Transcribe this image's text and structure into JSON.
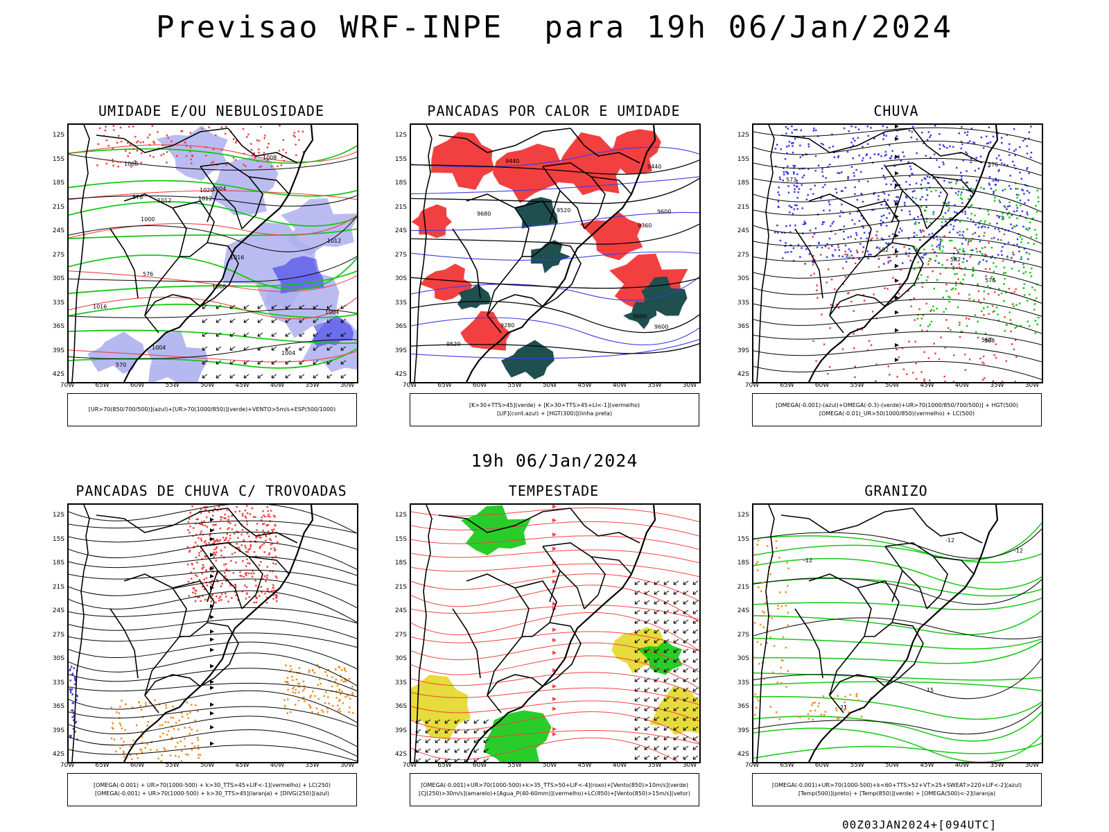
{
  "header": {
    "title": "Previsao WRF-INPE  para 19h 06/Jan/2024",
    "subtitle": "19h 06/Jan/2024",
    "footer": "00Z03JAN2024+[094UTC]"
  },
  "axes": {
    "lat_labels": [
      "12S",
      "15S",
      "18S",
      "21S",
      "24S",
      "27S",
      "30S",
      "33S",
      "36S",
      "39S",
      "42S"
    ],
    "lon_labels": [
      "70W",
      "65W",
      "60W",
      "55W",
      "50W",
      "45W",
      "40W",
      "35W",
      "30W"
    ]
  },
  "panels": [
    {
      "title": "UMIDADE E/OU NEBULOSIDADE",
      "legend": [
        "[UR>70(850/700/500)](azul)+[UR>70(1000/850)](verde)+VENTO>5m/s+ESP(500/1000)"
      ],
      "contour_labels": [
        "1004",
        "1008",
        "1004",
        "1012",
        "1004",
        "1008",
        "1012",
        "1016",
        "1012",
        "1016",
        "1020",
        "1008",
        "1004",
        "1000",
        "576",
        "570",
        "576"
      ]
    },
    {
      "title": "PANCADAS POR CALOR E UMIDADE",
      "legend": [
        "[K>30+TTS>45](verde) + [K>30+TTS>45+LI<-1](vermelho)",
        "[LIF](cont.azul) + [HGT(300)](linha preta)"
      ],
      "contour_labels": [
        "9600",
        "9600",
        "9600",
        "9520",
        "9520",
        "9440",
        "9360",
        "9280",
        "9440",
        "9680"
      ]
    },
    {
      "title": "CHUVA",
      "legend": [
        "[OMEGA(-0.001)-(azul)+OMEGA(-0.3)-(verde)+UR>70(1000/850/700/500)] + HGT(500)",
        "[OMEGA(-0.01)_UR>50(1000/850)(vermelho) + LC(500)"
      ],
      "contour_labels": [
        "576",
        "582",
        "588",
        "573",
        "567",
        "576",
        "582"
      ]
    },
    {
      "title": "PANCADAS DE CHUVA C/ TROVOADAS",
      "legend": [
        "[OMEGA(-0.001) + UR>70(1000-500) + k>30_TTS>45+LIF<-1](vermelho) + LC(250)",
        "[OMEGA(-0.001) + UR>70(1000-500) + k>30_TTS>45](laranja) + [DIVG(250)](azul)"
      ],
      "contour_labels": []
    },
    {
      "title": "TEMPESTADE",
      "legend": [
        "[OMEGA(-0.001)+UR>70(1000-500)+k>35_TTS>50+LIF<-4](roxo)+[Vento(850)>10m/s](verde)",
        "[CJ(250)>30m/s](amarelo)+[Agua_P(40-60mm)](vermelho)+LC(850)+[Vento(850)>15m/s](vetor)"
      ],
      "contour_labels": []
    },
    {
      "title": "GRANIZO",
      "legend": [
        "[OMEGA(-0.001)+UR>70(1000-500)+k<60+TTS>52+VT>25+SWEAT>220+LIF<-2](azul)",
        "[Temp(500)](preto) + [Temp(850)](verde) + [OMEGA(500)<-2](laranja)"
      ],
      "contour_labels": [
        "-12",
        "-12",
        "-12",
        "15",
        "21"
      ]
    }
  ],
  "colors": {
    "blue_humidity": "#aeb0ee",
    "blue_strong": "#3b3be8",
    "green": "#12c812",
    "red": "#f24040",
    "dark_teal": "#1f4f4f",
    "yellow": "#e6dc3c",
    "orange": "#f08a20"
  }
}
